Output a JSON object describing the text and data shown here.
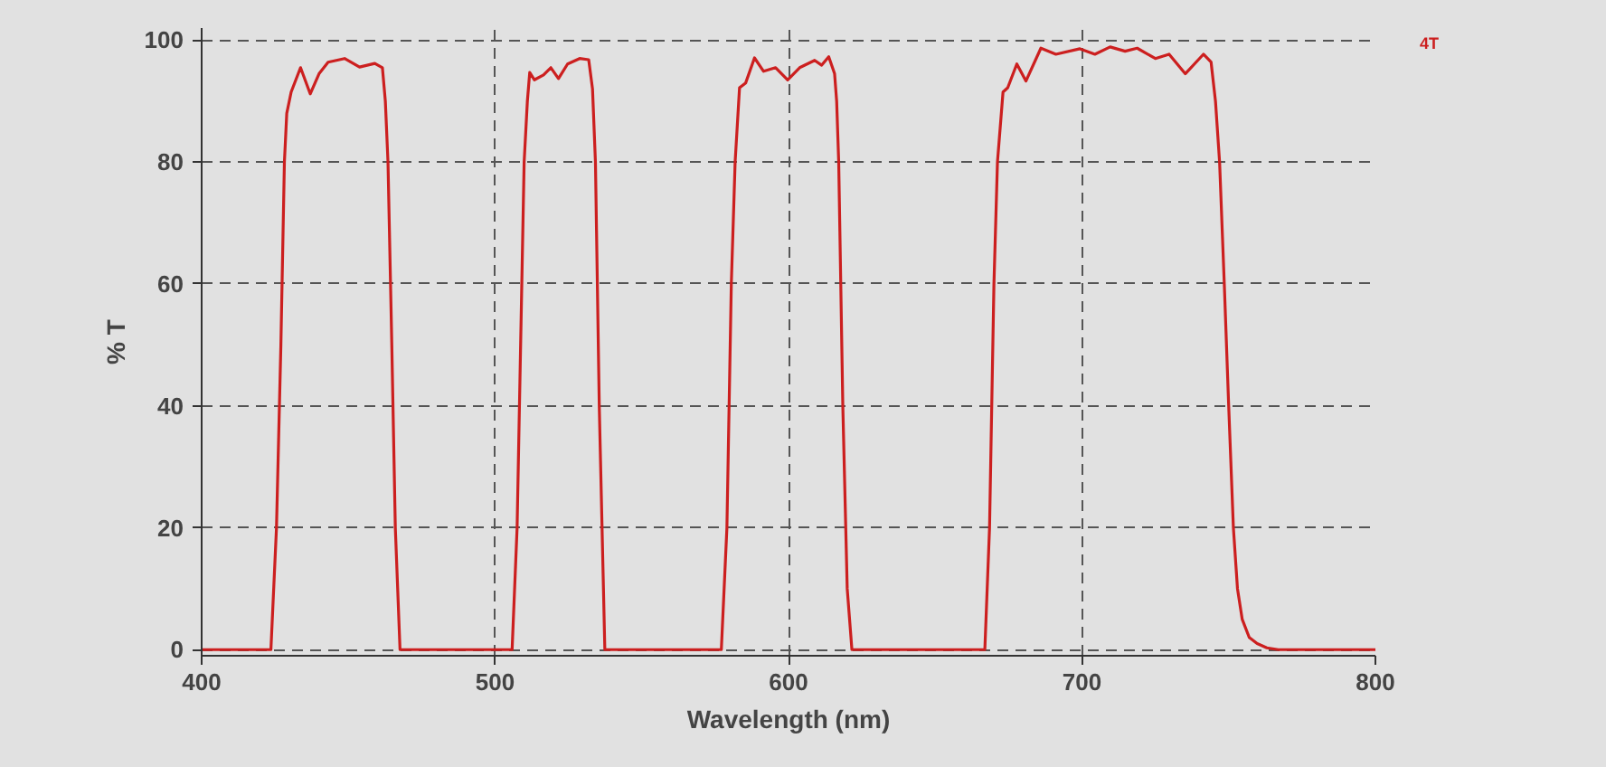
{
  "chart_data": {
    "type": "line",
    "xlabel": "Wavelength (nm)",
    "ylabel": "% T",
    "annotations": [
      "4T"
    ],
    "xlim": [
      400,
      800
    ],
    "ylim": [
      -1,
      102
    ],
    "xticks": [
      400,
      500,
      600,
      700,
      800
    ],
    "yticks": [
      0,
      20,
      40,
      60,
      80,
      100
    ],
    "grid": true,
    "marker": "none",
    "line_style": "solid",
    "series": [
      {
        "color": "#cc1f1f",
        "x": [
          400,
          423.6,
          425.5,
          427,
          428.2,
          429,
          430.5,
          433.7,
          437,
          440,
          443.1,
          448.7,
          453.8,
          459,
          461.6,
          462.6,
          463.5,
          464.8,
          466,
          467.6,
          470,
          505.8,
          507.5,
          509.9,
          511,
          511.8,
          513.4,
          516.5,
          519,
          521.6,
          524.7,
          528.8,
          531.9,
          533.2,
          534.2,
          535.5,
          537.4,
          540,
          577.1,
          579,
          580.5,
          581.8,
          583.3,
          585.4,
          588.4,
          591.5,
          595.6,
          599.7,
          603.8,
          608.9,
          611.3,
          613.7,
          615.7,
          616.4,
          617.1,
          618.5,
          620,
          621.6,
          625,
          666.9,
          668.5,
          670,
          671.2,
          673.1,
          674.7,
          677.8,
          680.9,
          686,
          691.1,
          699.3,
          704.4,
          709.6,
          714.7,
          718.8,
          725,
          729.7,
          735.2,
          741.4,
          744,
          745.5,
          746.9,
          748.5,
          750,
          751.6,
          753,
          754.6,
          757,
          759.7,
          763,
          766.9,
          800
        ],
        "values": [
          0,
          0,
          20,
          50,
          80,
          88,
          91.5,
          95.5,
          91.2,
          94.5,
          96.4,
          97.0,
          95.6,
          96.2,
          95.5,
          90,
          80,
          50,
          20,
          0,
          0,
          0,
          20,
          80,
          90,
          94.7,
          93.5,
          94.3,
          95.5,
          93.7,
          96.1,
          97.0,
          96.8,
          92,
          80,
          40,
          0,
          0,
          0,
          20,
          60,
          80,
          92.2,
          93.0,
          97.1,
          94.9,
          95.5,
          93.5,
          95.5,
          96.7,
          95.9,
          97.3,
          94.5,
          90,
          80,
          40,
          10,
          0,
          0,
          0,
          20,
          60,
          80,
          91.5,
          92.2,
          96.1,
          93.3,
          98.7,
          97.7,
          98.6,
          97.7,
          98.9,
          98.2,
          98.7,
          97.0,
          97.7,
          94.5,
          97.7,
          96.4,
          90,
          80,
          60,
          40,
          20,
          10,
          5,
          2,
          1,
          0.3,
          0,
          0
        ]
      }
    ]
  }
}
